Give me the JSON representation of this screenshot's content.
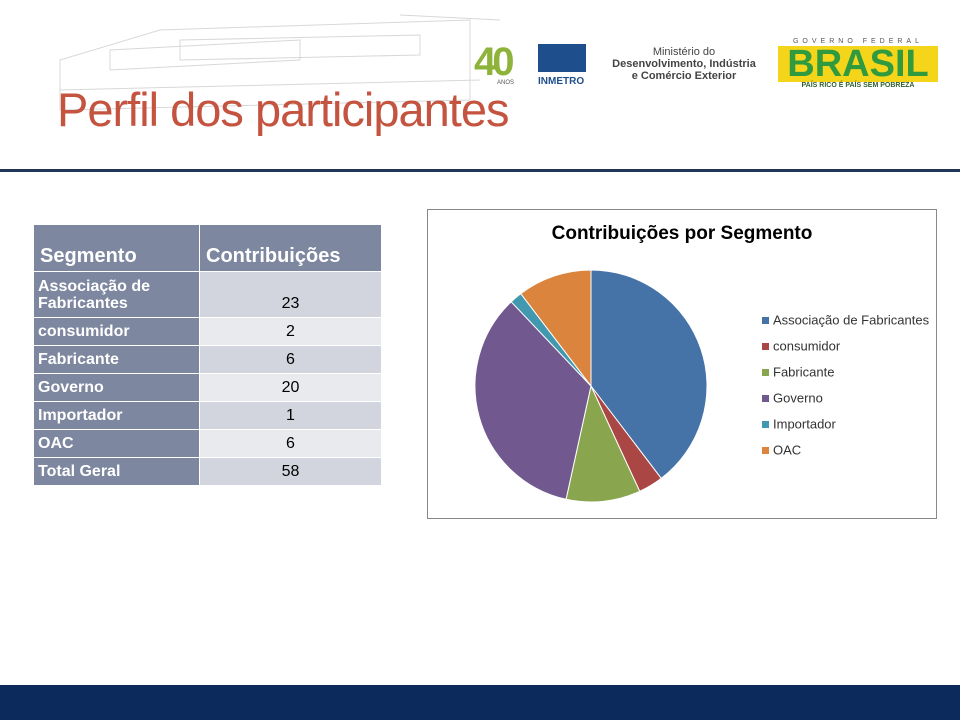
{
  "header": {
    "title": "Perfil dos participantes",
    "logos": {
      "anniversary": "40",
      "anniversary_caption": "ANOS",
      "inmetro": "INMETRO",
      "ministry": [
        "Ministério do",
        "Desenvolvimento, Indústria",
        "e Comércio Exterior"
      ],
      "government": "GOVERNO FEDERAL",
      "brand": "BRASIL",
      "slogan": "PAÍS RICO É PAÍS SEM POBREZA"
    }
  },
  "table": {
    "columns": [
      "Segmento",
      "Contribuições"
    ],
    "rows": [
      [
        "Associação de Fabricantes",
        23
      ],
      [
        "consumidor",
        2
      ],
      [
        "Fabricante",
        6
      ],
      [
        "Governo",
        20
      ],
      [
        "Importador",
        1
      ],
      [
        "OAC",
        6
      ],
      [
        "Total Geral",
        58
      ]
    ]
  },
  "chart_data": {
    "type": "pie",
    "title": "Contribuições por Segmento",
    "categories": [
      "Associação de Fabricantes",
      "consumidor",
      "Fabricante",
      "Governo",
      "Importador",
      "OAC"
    ],
    "values": [
      23,
      2,
      6,
      20,
      1,
      6
    ],
    "colors": [
      "#4572a7",
      "#aa4643",
      "#89a54e",
      "#71588f",
      "#4198af",
      "#db843d"
    ],
    "legend": "right"
  }
}
